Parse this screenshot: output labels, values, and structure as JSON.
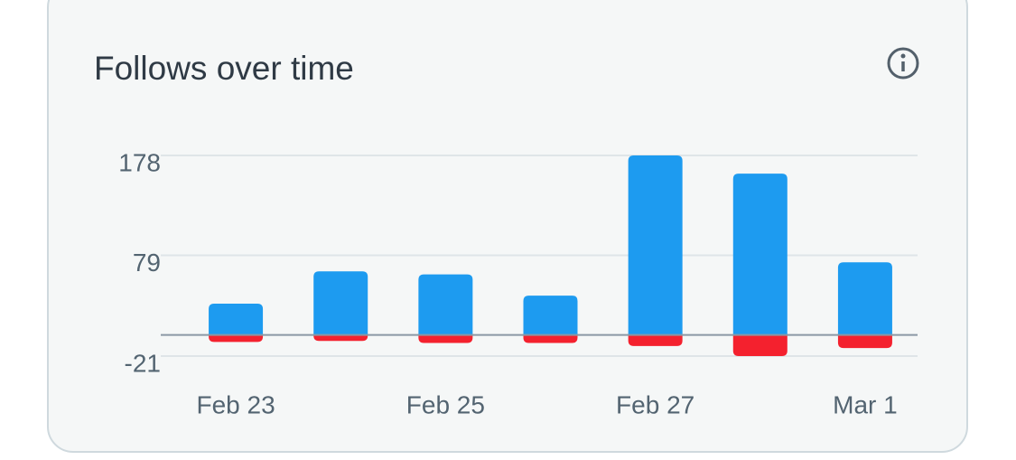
{
  "chart_data": {
    "type": "bar",
    "title": "Follows over time",
    "categories": [
      "Feb 23",
      null,
      "Feb 25",
      null,
      "Feb 27",
      null,
      "Mar 1"
    ],
    "series": [
      {
        "color": "#1d9bf0",
        "values": [
          31,
          63,
          60,
          39,
          178,
          160,
          72
        ]
      },
      {
        "color": "#f4212e",
        "values": [
          -7,
          -6,
          -8,
          -8,
          -11,
          -21,
          -13
        ]
      }
    ],
    "ylim": [
      -21,
      178
    ],
    "yticks": [
      178,
      79,
      -21
    ],
    "grid": true
  }
}
